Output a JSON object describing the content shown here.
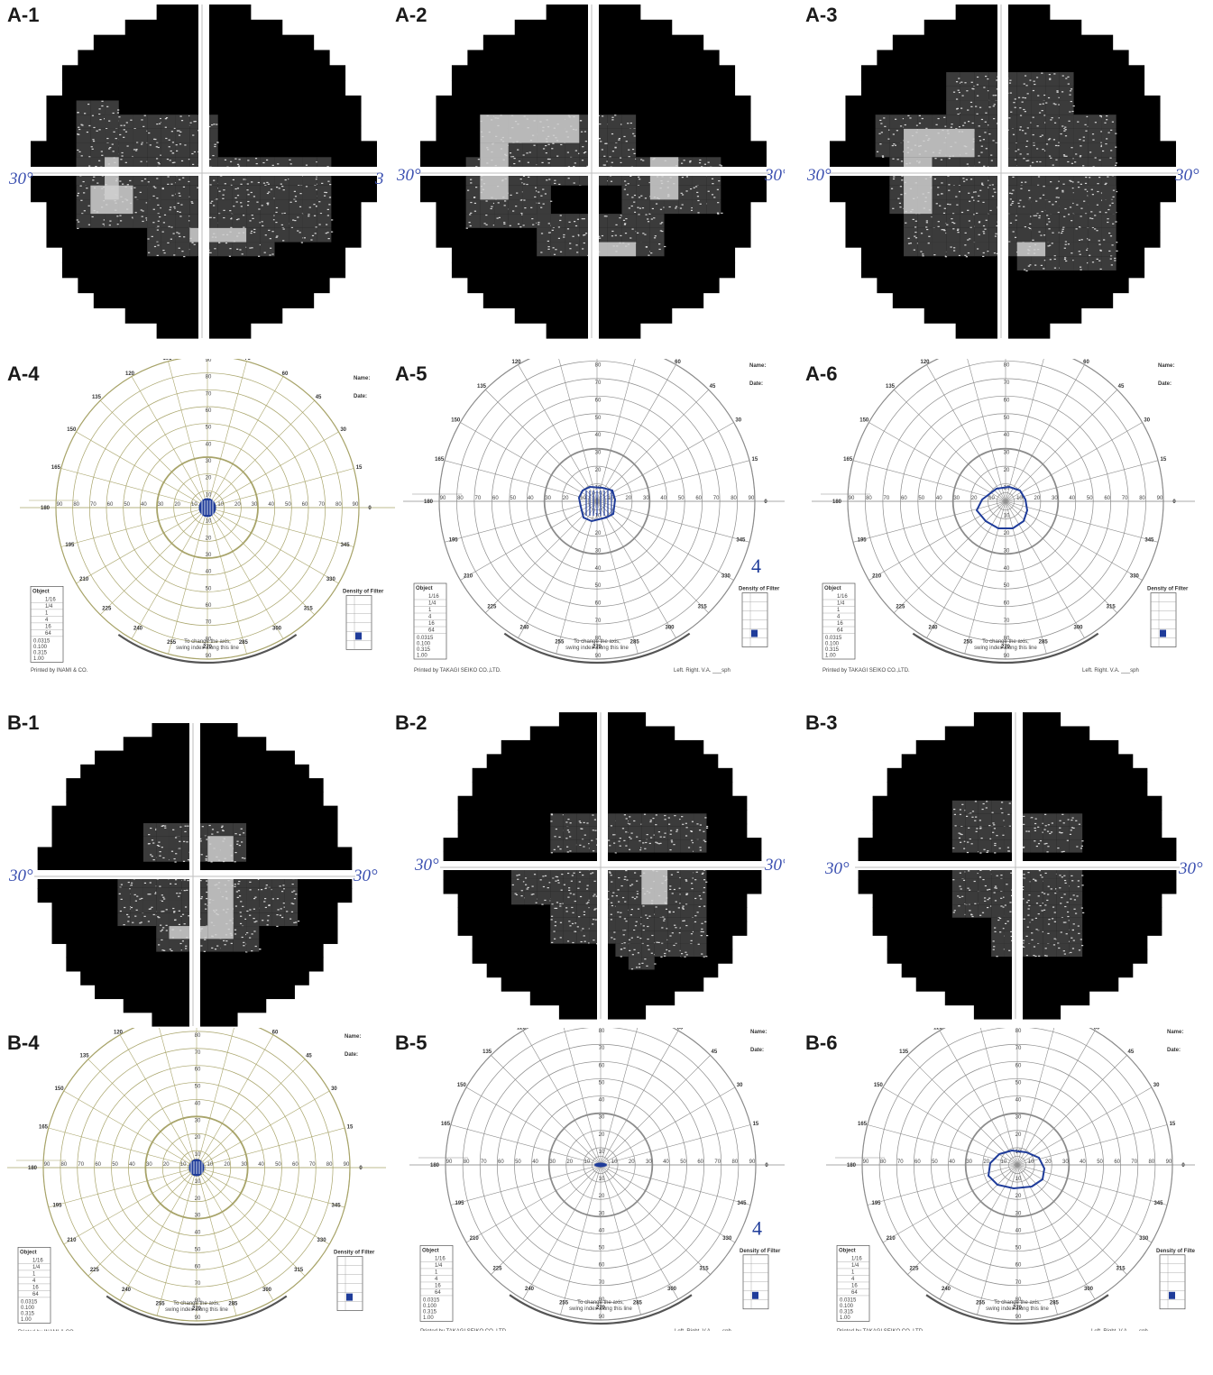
{
  "degree_label": "30°",
  "goldmann": {
    "top_angles": [
      "120",
      "105",
      "90",
      "75",
      "60"
    ],
    "upper_left": [
      "135",
      "150",
      "165"
    ],
    "upper_right": [
      "45",
      "30",
      "15"
    ],
    "left_mid": "180",
    "right_mid": "0",
    "lower_left": [
      "195",
      "210",
      "225"
    ],
    "lower_right": [
      "345",
      "330",
      "315"
    ],
    "bottom_angles": [
      "240",
      "255",
      "270",
      "285",
      "300"
    ],
    "radial_ticks": [
      "90",
      "80",
      "70",
      "60",
      "50",
      "40",
      "30",
      "20",
      "10"
    ],
    "footer_line1": "To change the axis,",
    "footer_line2": "swing index along this line",
    "name_label": "Name:",
    "date_label": "Date:",
    "object_label": "Object",
    "density_label": "Density of Filter",
    "printer_inami": "Printed by INAMI & CO.",
    "printer_takagi": "Printed by TAKAGI SEIKO CO.,LTD.",
    "left_right_label": "Left.   Right.   V.A.   ___sph",
    "object_sizes": [
      "0.0315",
      "0.100",
      "0.315",
      "1.00"
    ],
    "object_rows": [
      "1/16",
      "1/4",
      "1",
      "4",
      "16",
      "64"
    ],
    "annotation_4": "4"
  },
  "panels": [
    {
      "id": "A-1",
      "label": "A-1",
      "kind": "hfa"
    },
    {
      "id": "A-2",
      "label": "A-2",
      "kind": "hfa"
    },
    {
      "id": "A-3",
      "label": "A-3",
      "kind": "hfa"
    },
    {
      "id": "A-4",
      "label": "A-4",
      "kind": "goldmann",
      "style": "olive"
    },
    {
      "id": "A-5",
      "label": "A-5",
      "kind": "goldmann",
      "style": "gray"
    },
    {
      "id": "A-6",
      "label": "A-6",
      "kind": "goldmann",
      "style": "gray"
    },
    {
      "id": "B-1",
      "label": "B-1",
      "kind": "hfa"
    },
    {
      "id": "B-2",
      "label": "B-2",
      "kind": "hfa"
    },
    {
      "id": "B-3",
      "label": "B-3",
      "kind": "hfa"
    },
    {
      "id": "B-4",
      "label": "B-4",
      "kind": "goldmann",
      "style": "olive"
    },
    {
      "id": "B-5",
      "label": "B-5",
      "kind": "goldmann",
      "style": "gray"
    },
    {
      "id": "B-6",
      "label": "B-6",
      "kind": "goldmann",
      "style": "gray"
    }
  ],
  "colors": {
    "black_field": "#000000",
    "pattern_gray": "#8a8a8a",
    "light_gray": "#cfcfcf",
    "isopter_blue": "#1f3c9a",
    "olive_grid": "#a8a46a",
    "gray_grid": "#8c8c8c",
    "degree_blue": "#3a4fb0"
  }
}
